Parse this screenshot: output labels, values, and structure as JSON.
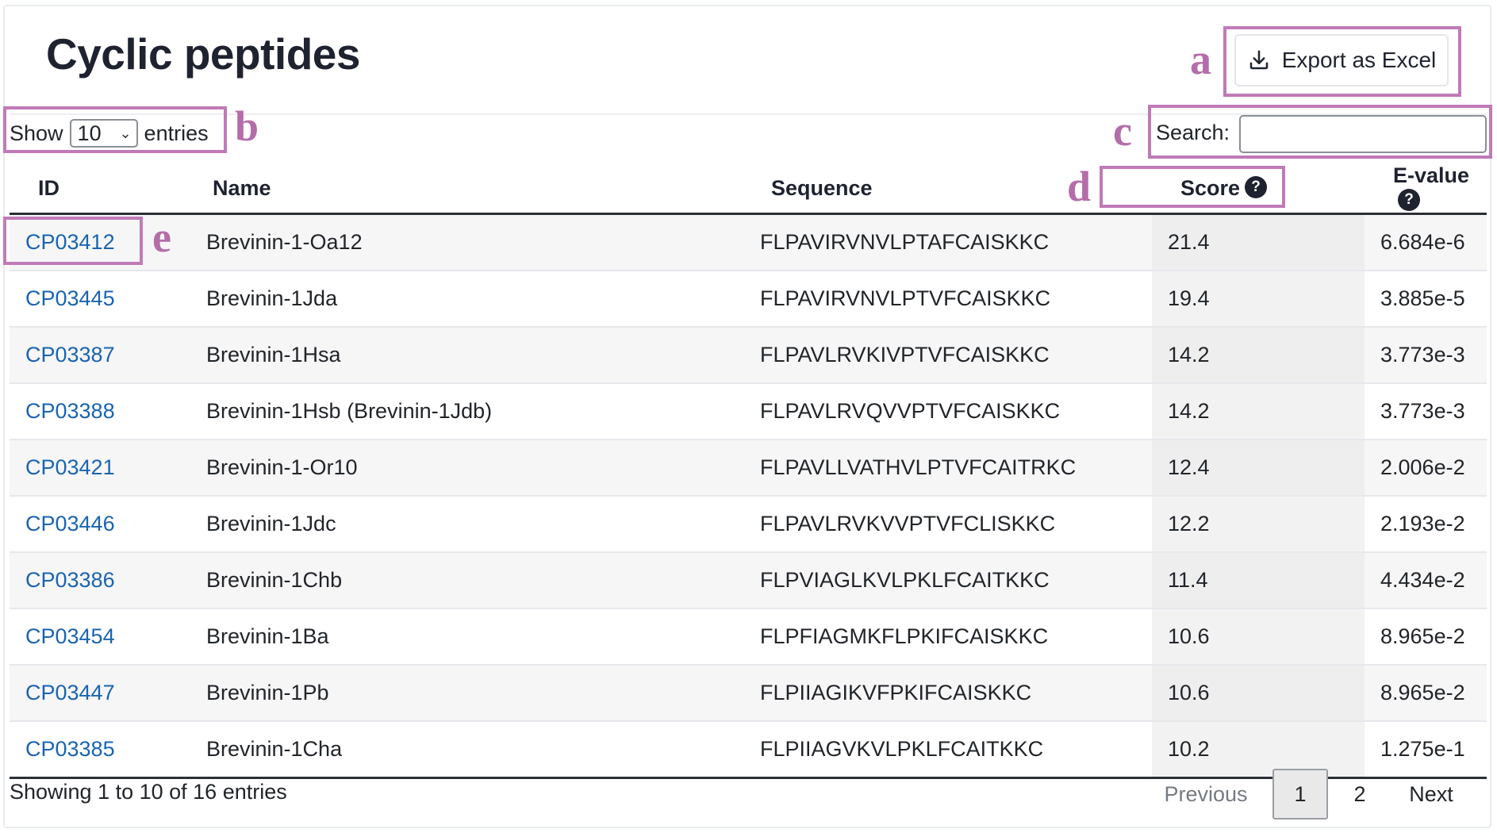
{
  "header": {
    "title": "Cyclic peptides",
    "export_label": "Export as Excel"
  },
  "length_menu": {
    "show_label": "Show",
    "selected": "10",
    "entries_label": "entries"
  },
  "search": {
    "label": "Search:",
    "value": ""
  },
  "table": {
    "columns": [
      "ID",
      "Name",
      "Sequence",
      "Score",
      "E-value"
    ],
    "rows": [
      {
        "id": "CP03412",
        "name": "Brevinin-1-Oa12",
        "sequence": "FLPAVIRVNVLPTAFCAISKKC",
        "score": "21.4",
        "evalue": "6.684e-6"
      },
      {
        "id": "CP03445",
        "name": "Brevinin-1Jda",
        "sequence": "FLPAVIRVNVLPTVFCAISKKC",
        "score": "19.4",
        "evalue": "3.885e-5"
      },
      {
        "id": "CP03387",
        "name": "Brevinin-1Hsa",
        "sequence": "FLPAVLRVKIVPTVFCAISKKC",
        "score": "14.2",
        "evalue": "3.773e-3"
      },
      {
        "id": "CP03388",
        "name": "Brevinin-1Hsb (Brevinin-1Jdb)",
        "sequence": "FLPAVLRVQVVPTVFCAISKKC",
        "score": "14.2",
        "evalue": "3.773e-3"
      },
      {
        "id": "CP03421",
        "name": "Brevinin-1-Or10",
        "sequence": "FLPAVLLVATHVLPTVFCAITRKC",
        "score": "12.4",
        "evalue": "2.006e-2"
      },
      {
        "id": "CP03446",
        "name": "Brevinin-1Jdc",
        "sequence": "FLPAVLRVKVVPTVFCLISKKC",
        "score": "12.2",
        "evalue": "2.193e-2"
      },
      {
        "id": "CP03386",
        "name": "Brevinin-1Chb",
        "sequence": "FLPVIAGLKVLPKLFCAITKKC",
        "score": "11.4",
        "evalue": "4.434e-2"
      },
      {
        "id": "CP03454",
        "name": "Brevinin-1Ba",
        "sequence": "FLPFIAGMKFLPKIFCAISKKC",
        "score": "10.6",
        "evalue": "8.965e-2"
      },
      {
        "id": "CP03447",
        "name": "Brevinin-1Pb",
        "sequence": "FLPIIAGIKVFPKIFCAISKKC",
        "score": "10.6",
        "evalue": "8.965e-2"
      },
      {
        "id": "CP03385",
        "name": "Brevinin-1Cha",
        "sequence": "FLPIIAGVKVLPKLFCAITKKC",
        "score": "10.2",
        "evalue": "1.275e-1"
      }
    ]
  },
  "footer": {
    "info": "Showing 1 to 10 of 16 entries",
    "pagination": {
      "previous": "Previous",
      "pages": [
        "1",
        "2"
      ],
      "active": "1",
      "next": "Next"
    }
  },
  "annotations": {
    "a": "a",
    "b": "b",
    "c": "c",
    "d": "d",
    "e": "e"
  },
  "colors": {
    "annotation": "#c07ab8",
    "link": "#1a64b0"
  }
}
